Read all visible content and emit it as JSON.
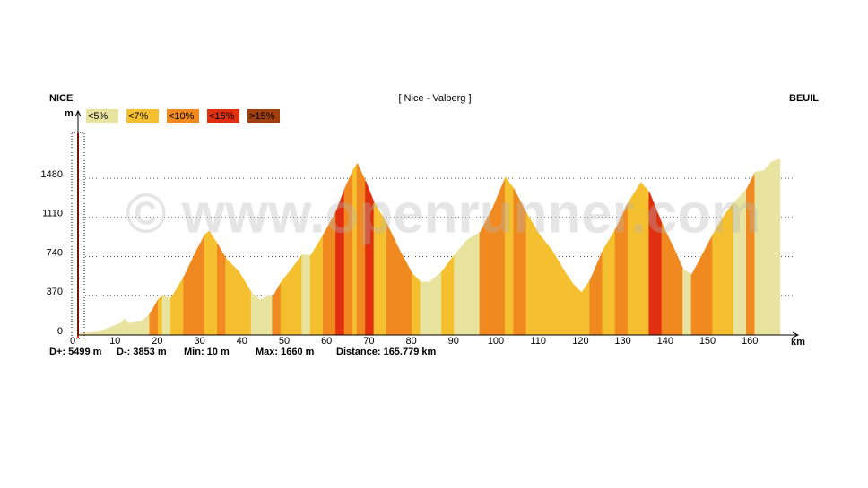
{
  "chart_data": {
    "type": "elevation_profile",
    "title": "[ Nice - Valberg ]",
    "start_label": "NICE",
    "end_label": "BEUIL",
    "y_label": "m",
    "x_label": "km",
    "watermark": "© www.openrunner.com",
    "legend": [
      {
        "name": "<5%",
        "color": "#e8e4a0"
      },
      {
        "name": "<7%",
        "color": "#f5c030"
      },
      {
        "name": "<10%",
        "color": "#f08a20"
      },
      {
        "name": "<15%",
        "color": "#e03010"
      },
      {
        "name": ">15%",
        "color": "#a04010"
      }
    ],
    "stats": [
      "D+: 5499 m",
      "D-: 3853 m",
      "Min: 10 m",
      "Max: 1660 m",
      "Distance: 165.779 km"
    ],
    "x": [
      0,
      2,
      5,
      8,
      10,
      11,
      12,
      15,
      17,
      19,
      20,
      22,
      25,
      28,
      30,
      31,
      33,
      35,
      38,
      41,
      43,
      45,
      46,
      48,
      50,
      53,
      55,
      58,
      61,
      63,
      65,
      66,
      68,
      70,
      73,
      76,
      79,
      81,
      83,
      86,
      89,
      92,
      95,
      98,
      101,
      103,
      106,
      109,
      112,
      115,
      117,
      119,
      121,
      124,
      127,
      130,
      133,
      135,
      138,
      141,
      143,
      145,
      147,
      150,
      153,
      155,
      158,
      160,
      162,
      164,
      165.779
    ],
    "series": [
      {
        "values": [
          10,
          20,
          30,
          80,
          110,
          150,
          110,
          130,
          200,
          340,
          370,
          350,
          550,
          800,
          950,
          980,
          860,
          720,
          600,
          400,
          330,
          370,
          360,
          500,
          600,
          760,
          750,
          950,
          1170,
          1380,
          1560,
          1620,
          1450,
          1250,
          1050,
          800,
          580,
          500,
          500,
          600,
          760,
          900,
          970,
          1200,
          1490,
          1380,
          1150,
          950,
          800,
          600,
          480,
          400,
          520,
          800,
          1000,
          1250,
          1440,
          1350,
          1050,
          800,
          620,
          570,
          720,
          950,
          1150,
          1250,
          1380,
          1540,
          1550,
          1640,
          1660
        ],
        "colors": [
          "#e8e4a0",
          "#e8e4a0",
          "#e8e4a0",
          "#e8e4a0",
          "#e8e4a0",
          "#e8e4a0",
          "#e8e4a0",
          "#e8e4a0",
          "#f08a20",
          "#f5c030",
          "#e8e4a0",
          "#f5c030",
          "#f08a20",
          "#f08a20",
          "#f5c030",
          "#f5c030",
          "#f08a20",
          "#f5c030",
          "#f5c030",
          "#e8e4a0",
          "#e8e4a0",
          "#e8e4a0",
          "#f08a20",
          "#f5c030",
          "#f5c030",
          "#e8e4a0",
          "#f5c030",
          "#f08a20",
          "#e03010",
          "#f08a20",
          "#f5c030",
          "#f08a20",
          "#e03010",
          "#f5c030",
          "#f08a20",
          "#f08a20",
          "#f5c030",
          "#e8e4a0",
          "#e8e4a0",
          "#f5c030",
          "#e8e4a0",
          "#e8e4a0",
          "#f08a20",
          "#f08a20",
          "#f5c030",
          "#f08a20",
          "#f5c030",
          "#f5c030",
          "#f5c030",
          "#f5c030",
          "#f5c030",
          "#f5c030",
          "#f08a20",
          "#f5c030",
          "#f08a20",
          "#f5c030",
          "#f5c030",
          "#e03010",
          "#f08a20",
          "#f08a20",
          "#e8e4a0",
          "#f08a20",
          "#f08a20",
          "#f5c030",
          "#f5c030",
          "#e8e4a0",
          "#f08a20",
          "#e8e4a0",
          "#e8e4a0",
          "#e8e4a0",
          "#e8e4a0"
        ]
      }
    ],
    "xlim": [
      0,
      170
    ],
    "ylim": [
      0,
      2090
    ],
    "xticks": [
      0,
      10,
      20,
      30,
      40,
      50,
      60,
      70,
      80,
      90,
      100,
      110,
      120,
      130,
      140,
      150,
      160
    ],
    "yticks": [
      0,
      370,
      740,
      1110,
      1480
    ],
    "grid": true
  }
}
